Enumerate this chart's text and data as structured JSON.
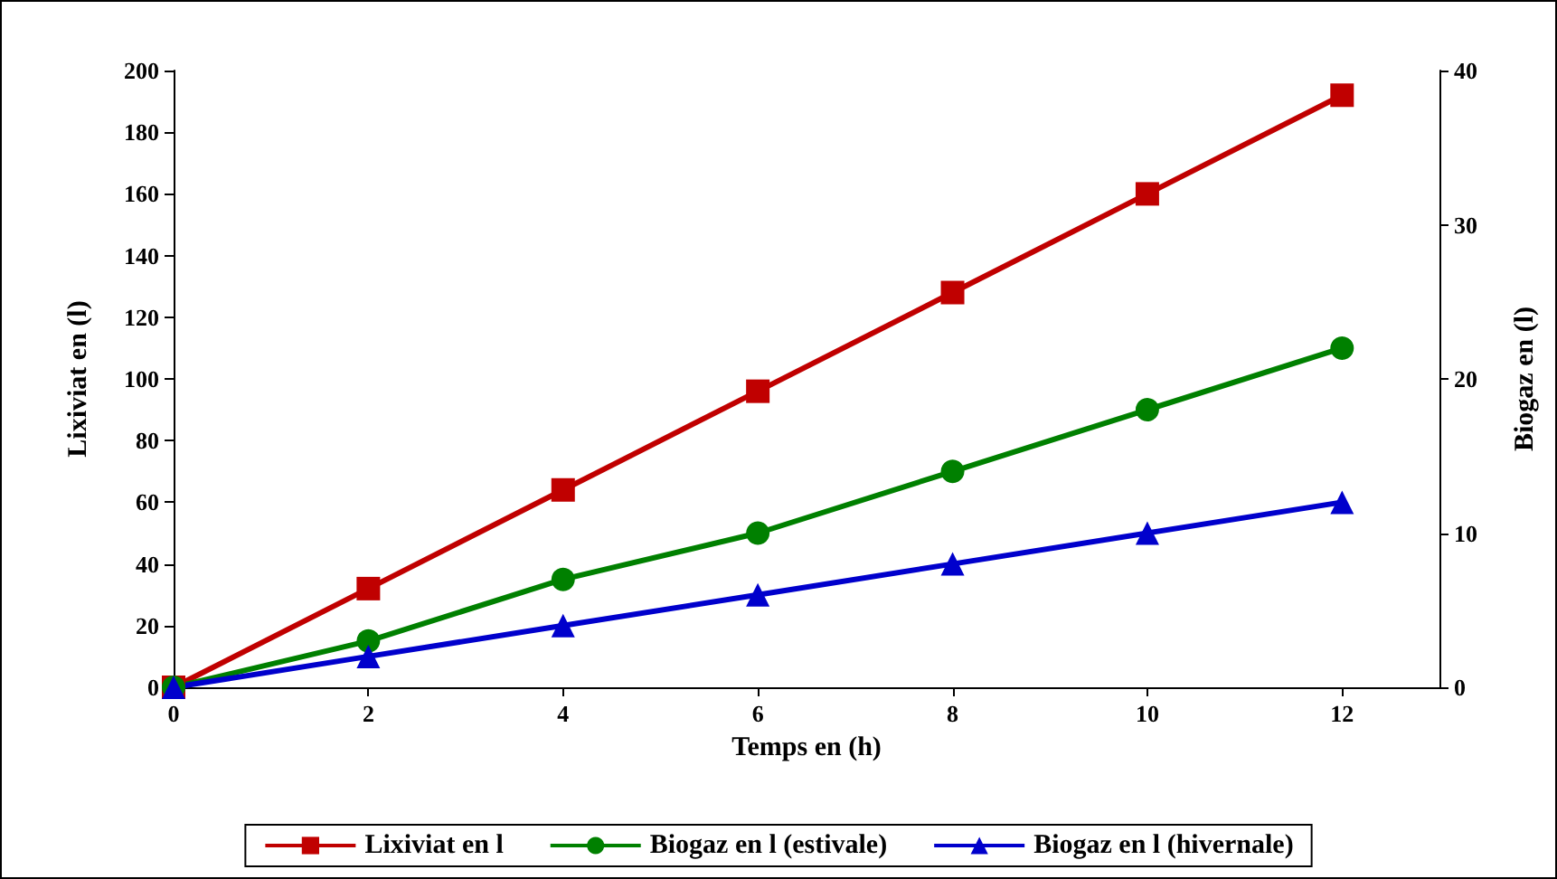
{
  "chart_data": {
    "type": "line",
    "xlabel": "Temps en (h)",
    "ylabel": "Lixiviat en (l)",
    "y2label": "Biogaz en (l)",
    "x": [
      0,
      2,
      4,
      6,
      8,
      10,
      12
    ],
    "series": [
      {
        "name": "Lixiviat en l",
        "color": "#c00000",
        "marker": "square",
        "values": [
          0,
          32,
          64,
          96,
          128,
          160,
          192
        ]
      },
      {
        "name": "Biogaz en l (estivale)",
        "color": "#008000",
        "marker": "circle",
        "axis": "y2",
        "values": [
          0,
          3,
          7,
          10,
          14,
          18,
          22
        ]
      },
      {
        "name": "Biogaz en l (hivernale)",
        "color": "#0000cc",
        "marker": "triangle",
        "axis": "y2",
        "values": [
          0,
          2,
          4,
          6,
          8,
          10,
          12
        ]
      }
    ],
    "xlim": [
      0,
      13
    ],
    "xticks": [
      0,
      2,
      4,
      6,
      8,
      10,
      12
    ],
    "ylim": [
      0,
      200
    ],
    "yticks": [
      0,
      20,
      40,
      60,
      80,
      100,
      120,
      140,
      160,
      180,
      200
    ],
    "y2lim": [
      0,
      40
    ],
    "y2ticks": [
      0,
      10,
      20,
      30,
      40
    ],
    "grid": false,
    "legend": "bottom",
    "line_style": "solid"
  }
}
